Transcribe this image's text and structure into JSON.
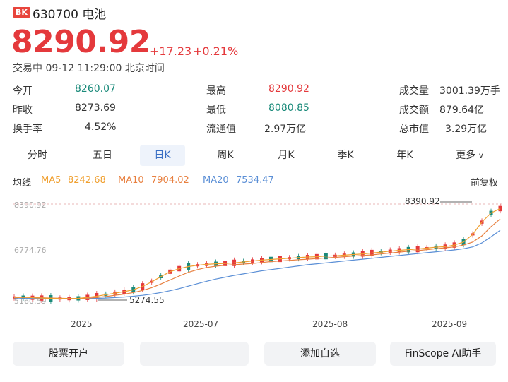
{
  "header": {
    "badge": "BK",
    "code_name": "630700 电池",
    "price": "8290.92",
    "change": "+17.23",
    "change_pct": "+0.21%",
    "status": "交易中 09-12 11:29:00 北京时间"
  },
  "stats": [
    {
      "label": "今开",
      "value": "8260.07",
      "color": "teal"
    },
    {
      "label": "昨收",
      "value": "8273.69",
      "color": "normal"
    },
    {
      "label": "换手率",
      "value": "4.52%",
      "color": "normal"
    },
    {
      "label": "最高",
      "value": "8290.92",
      "color": "red"
    },
    {
      "label": "最低",
      "value": "8080.85",
      "color": "teal"
    },
    {
      "label": "流通值",
      "value": "2.97万亿",
      "color": "normal"
    },
    {
      "label": "成交量",
      "value": "3001.39万手",
      "color": "normal"
    },
    {
      "label": "成交额",
      "value": "879.64亿",
      "color": "normal"
    },
    {
      "label": "总市值",
      "value": "3.29万亿",
      "color": "normal"
    }
  ],
  "tabs": [
    {
      "label": "分时",
      "active": false
    },
    {
      "label": "五日",
      "active": false
    },
    {
      "label": "日K",
      "active": true
    },
    {
      "label": "周K",
      "active": false
    },
    {
      "label": "月K",
      "active": false
    },
    {
      "label": "季K",
      "active": false
    },
    {
      "label": "年K",
      "active": false
    },
    {
      "label": "更多",
      "active": false
    }
  ],
  "ma": {
    "title": "均线",
    "ma5_label": "MA5",
    "ma5_value": "8242.68",
    "ma10_label": "MA10",
    "ma10_value": "7904.02",
    "ma20_label": "MA20",
    "ma20_value": "7534.47",
    "adjust": "前复权"
  },
  "chart_data": {
    "type": "line",
    "y_top_label": "8390.92",
    "y_mid_label": "6774.76",
    "y_bottom_label": "5160.59",
    "ylim": [
      5160.59,
      8390.92
    ],
    "x_labels": [
      "2025",
      "2025-07",
      "2025-08",
      "2025-09"
    ],
    "max_annotation": "8390.92",
    "min_annotation": "5274.55",
    "series": [
      {
        "name": "MA5",
        "values": [
          5340,
          5350,
          5330,
          5320,
          5310,
          5305,
          5300,
          5310,
          5340,
          5380,
          5430,
          5480,
          5530,
          5590,
          5700,
          5850,
          6020,
          6180,
          6280,
          6350,
          6390,
          6420,
          6440,
          6450,
          6470,
          6500,
          6530,
          6560,
          6580,
          6600,
          6620,
          6640,
          6660,
          6670,
          6690,
          6700,
          6720,
          6740,
          6760,
          6790,
          6820,
          6850,
          6880,
          6900,
          6920,
          6950,
          6980,
          7000,
          7050,
          7150,
          7400,
          7800,
          8100,
          8242.68
        ]
      },
      {
        "name": "MA10",
        "values": [
          5330,
          5340,
          5335,
          5330,
          5320,
          5312,
          5305,
          5305,
          5315,
          5340,
          5370,
          5410,
          5450,
          5500,
          5570,
          5660,
          5780,
          5910,
          6040,
          6160,
          6250,
          6320,
          6360,
          6390,
          6410,
          6430,
          6450,
          6480,
          6510,
          6530,
          6550,
          6570,
          6590,
          6610,
          6630,
          6650,
          6670,
          6690,
          6710,
          6730,
          6760,
          6790,
          6820,
          6850,
          6870,
          6900,
          6930,
          6960,
          6990,
          7050,
          7150,
          7350,
          7650,
          7904.02
        ]
      },
      {
        "name": "MA20",
        "values": [
          5300,
          5305,
          5308,
          5310,
          5310,
          5308,
          5306,
          5304,
          5305,
          5310,
          5320,
          5335,
          5355,
          5380,
          5410,
          5450,
          5500,
          5560,
          5630,
          5710,
          5790,
          5870,
          5940,
          6000,
          6060,
          6110,
          6160,
          6210,
          6250,
          6290,
          6330,
          6370,
          6410,
          6440,
          6470,
          6500,
          6530,
          6560,
          6590,
          6620,
          6650,
          6680,
          6710,
          6740,
          6770,
          6800,
          6830,
          6860,
          6890,
          6930,
          6990,
          7120,
          7320,
          7534.47
        ]
      }
    ]
  },
  "buttons": [
    "股票开户",
    "",
    "添加自选",
    "FinScope AI助手"
  ],
  "colors": {
    "up": "#e4393c",
    "down": "#1a8a7a",
    "ma5": "#f0a030",
    "ma10": "#e88040",
    "ma20": "#5b8fd6",
    "accent": "#3a6fc4"
  }
}
